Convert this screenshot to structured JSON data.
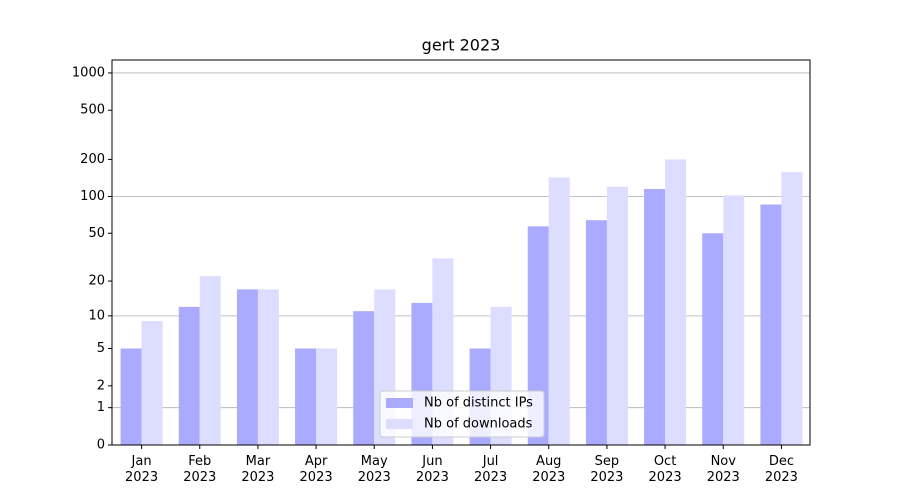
{
  "chart_data": {
    "type": "bar",
    "title": "gert 2023",
    "categories": [
      "Jan 2023",
      "Feb 2023",
      "Mar 2023",
      "Apr 2023",
      "May 2023",
      "Jun 2023",
      "Jul 2023",
      "Aug 2023",
      "Sep 2023",
      "Oct 2023",
      "Nov 2023",
      "Dec 2023"
    ],
    "series": [
      {
        "name": "Nb of distinct IPs",
        "color": "#aaaaff",
        "values": [
          5,
          12,
          17,
          5,
          11,
          13,
          5,
          57,
          64,
          115,
          50,
          86
        ]
      },
      {
        "name": "Nb of downloads",
        "color": "#ddddff",
        "values": [
          9,
          22,
          17,
          5,
          17,
          31,
          12,
          143,
          120,
          200,
          102,
          158
        ]
      }
    ],
    "yscale": "log1p",
    "ylim": [
      0,
      1272
    ],
    "yticks": [
      0,
      1,
      2,
      5,
      10,
      20,
      50,
      100,
      200,
      500,
      1000
    ],
    "grid": true,
    "legend": "lower center"
  }
}
